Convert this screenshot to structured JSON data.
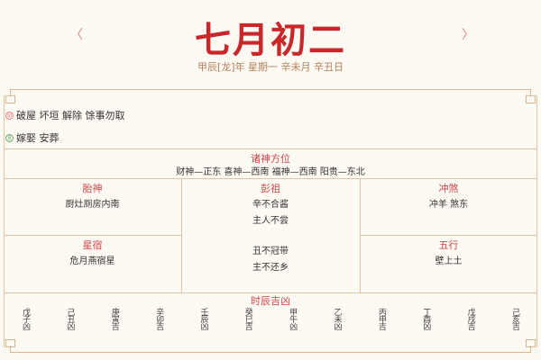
{
  "header": {
    "prev": "〈",
    "next": "〉",
    "title": "七月初二",
    "subtitle": "甲辰[龙]年 星期一 辛未月 辛丑日"
  },
  "avoid": {
    "icon": "忌",
    "text": "破屋 坏垣 解除 馀事勿取",
    "color": "#e07a7a"
  },
  "suitable": {
    "icon": "宜",
    "text": "嫁娶 安葬",
    "color": "#6aa86a"
  },
  "gods": {
    "title": "诸神方位",
    "text": "财神—正东 喜神—西南 福神—西南 阳贵—东北"
  },
  "taishen": {
    "title": "胎神",
    "text": "厨灶厕房内南"
  },
  "pengzu": {
    "title": "彭祖",
    "lines": [
      "辛不合酱",
      "主人不尝",
      "丑不冠带",
      "主不还乡"
    ]
  },
  "chongsha": {
    "title": "冲煞",
    "text": "冲羊 煞东"
  },
  "xingsu": {
    "title": "星宿",
    "text": "危月燕宿星"
  },
  "wuxing": {
    "title": "五行",
    "text": "壁上土"
  },
  "hours": {
    "title": "时辰吉凶",
    "items": [
      "戊子凶",
      "己丑凶",
      "庚寅吉",
      "辛卯吉",
      "壬辰凶",
      "癸巳吉",
      "甲午凶",
      "乙未凶",
      "丙申吉",
      "丁酉凶",
      "戊戌吉",
      "己亥吉"
    ]
  }
}
